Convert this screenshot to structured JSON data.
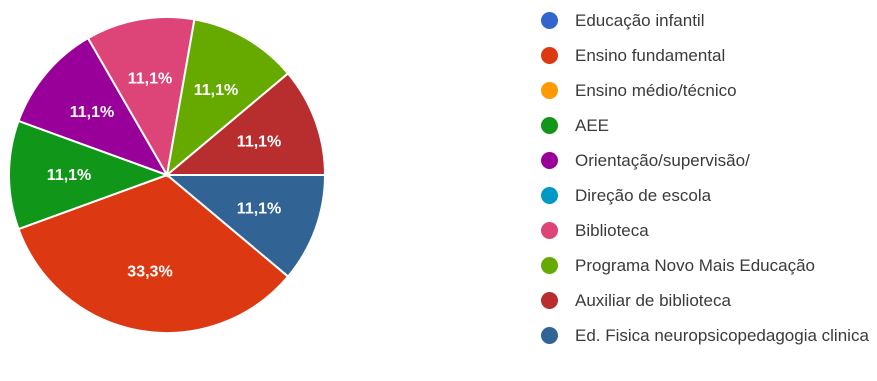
{
  "chart_data": {
    "type": "pie",
    "title": "",
    "categories": [
      "Educação infantil",
      "Ensino fundamental",
      "Ensino médio/técnico",
      "AEE",
      "Orientação/supervisão/",
      "Direção de escola",
      "Biblioteca",
      "Programa Novo Mais Educação",
      "Auxiliar de biblioteca",
      "Ed. Fisica neuropsicopedagogia clinica"
    ],
    "values": [
      0,
      33.3,
      0,
      11.1,
      11.1,
      0,
      11.1,
      11.1,
      11.1,
      11.1
    ],
    "labels": [
      "",
      "33,3%",
      "",
      "11,1%",
      "11,1%",
      "",
      "11,1%",
      "11,1%",
      "11,1%",
      "11,1%"
    ],
    "colors": [
      "#3366cc",
      "#dc3912",
      "#ff9900",
      "#109618",
      "#990099",
      "#0099c6",
      "#dd4477",
      "#66aa00",
      "#b82e2e",
      "#316395"
    ],
    "legend_position": "right",
    "slice_order": [
      9,
      1,
      3,
      4,
      6,
      7,
      8
    ]
  }
}
